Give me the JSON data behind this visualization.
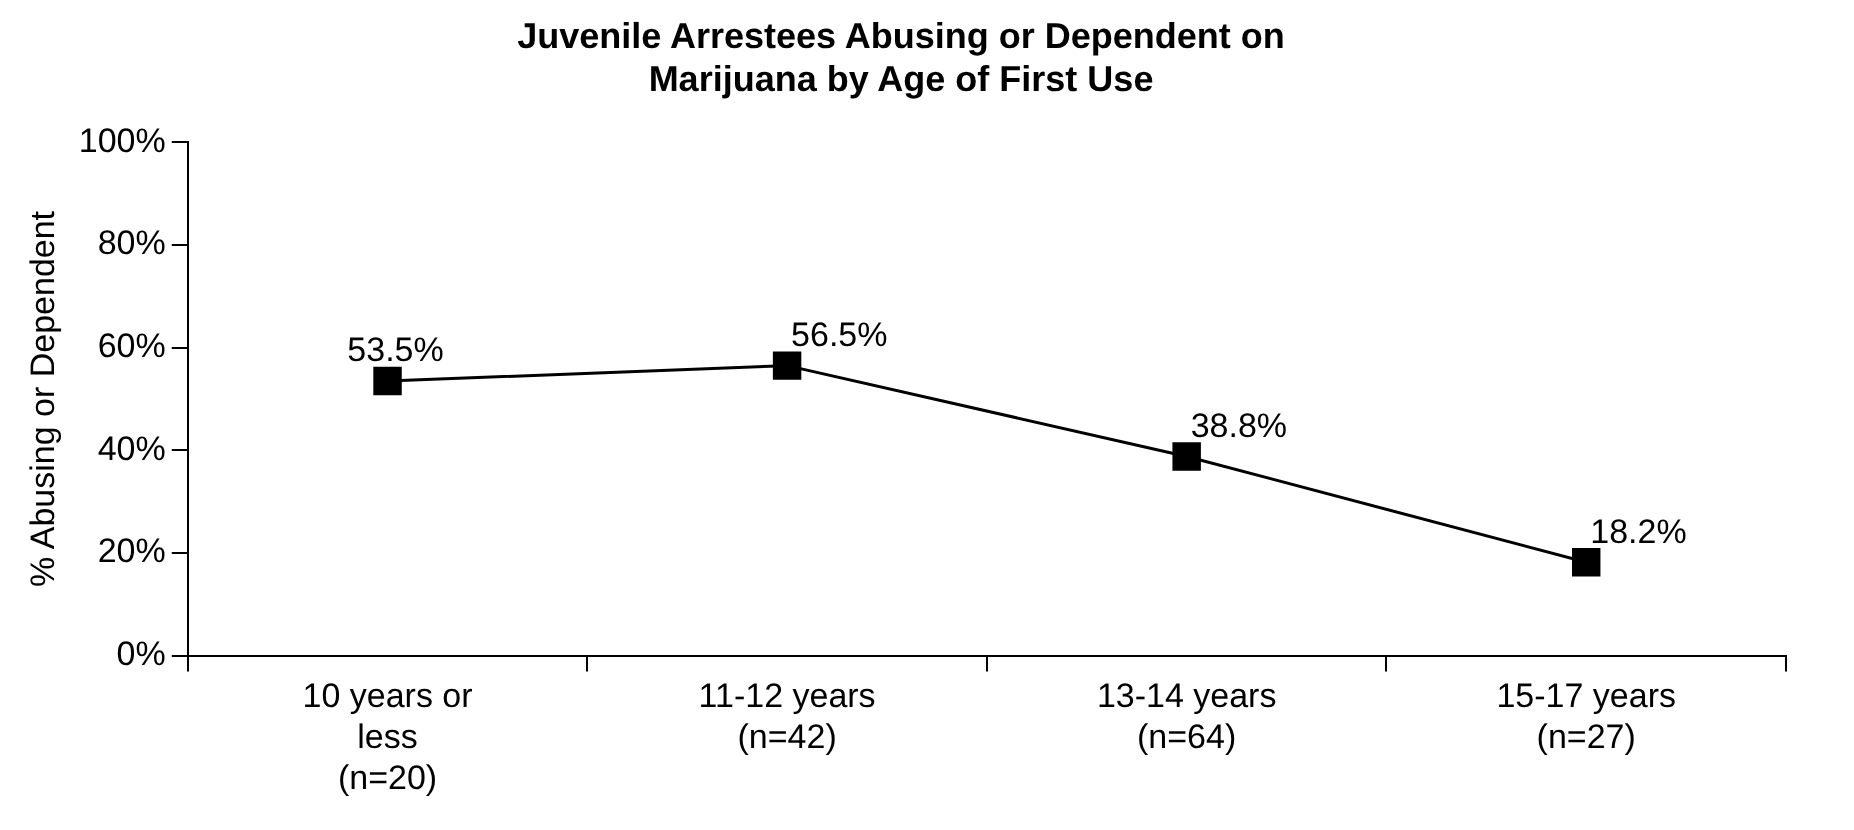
{
  "chart_data": {
    "type": "line",
    "title": "Juvenile Arrestees Abusing or Dependent on\nMarijuana by Age of First Use",
    "ylabel": "% Abusing or Dependent",
    "categories": [
      "10 years or\nless\n(n=20)",
      "11-12 years\n(n=42)",
      "13-14 years\n(n=64)",
      "15-17 years\n(n=27)"
    ],
    "values": [
      53.5,
      56.5,
      38.8,
      18.2
    ],
    "value_labels": [
      "53.5%",
      "56.5%",
      "38.8%",
      "18.2%"
    ],
    "color": "#000000",
    "marker": "square",
    "line_style": "solid",
    "ylim": [
      0,
      100
    ],
    "yticks": [
      {
        "value": 0,
        "label": "0%"
      },
      {
        "value": 20,
        "label": "20%"
      },
      {
        "value": 40,
        "label": "40%"
      },
      {
        "value": 60,
        "label": "60%"
      },
      {
        "value": 80,
        "label": "80%"
      },
      {
        "value": 100,
        "label": "100%"
      }
    ],
    "grid": false,
    "legend": false
  }
}
